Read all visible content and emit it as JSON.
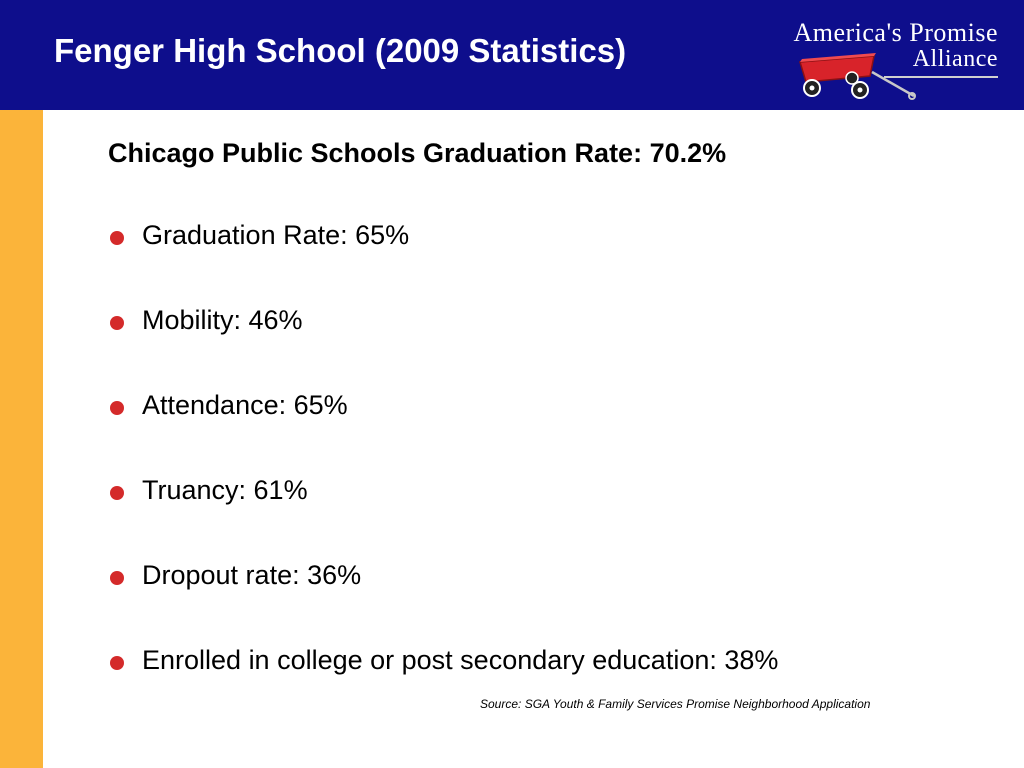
{
  "header": {
    "title": "Fenger High School (2009 Statistics)",
    "background_color": "#0e0e8c"
  },
  "logo": {
    "line1": "America's Promise",
    "line2": "Alliance",
    "icon": "red-wagon-icon"
  },
  "sidebar": {
    "color": "#fbb43a"
  },
  "content": {
    "subtitle": "Chicago Public Schools Graduation Rate: 70.2%",
    "bullet_color": "#d42a2a",
    "bullets": [
      "Graduation Rate: 65%",
      "Mobility: 46%",
      "Attendance: 65%",
      "Truancy: 61%",
      "Dropout rate: 36%",
      "Enrolled in college or post secondary education: 38%"
    ],
    "source": "Source: SGA Youth & Family Services Promise Neighborhood Application"
  }
}
